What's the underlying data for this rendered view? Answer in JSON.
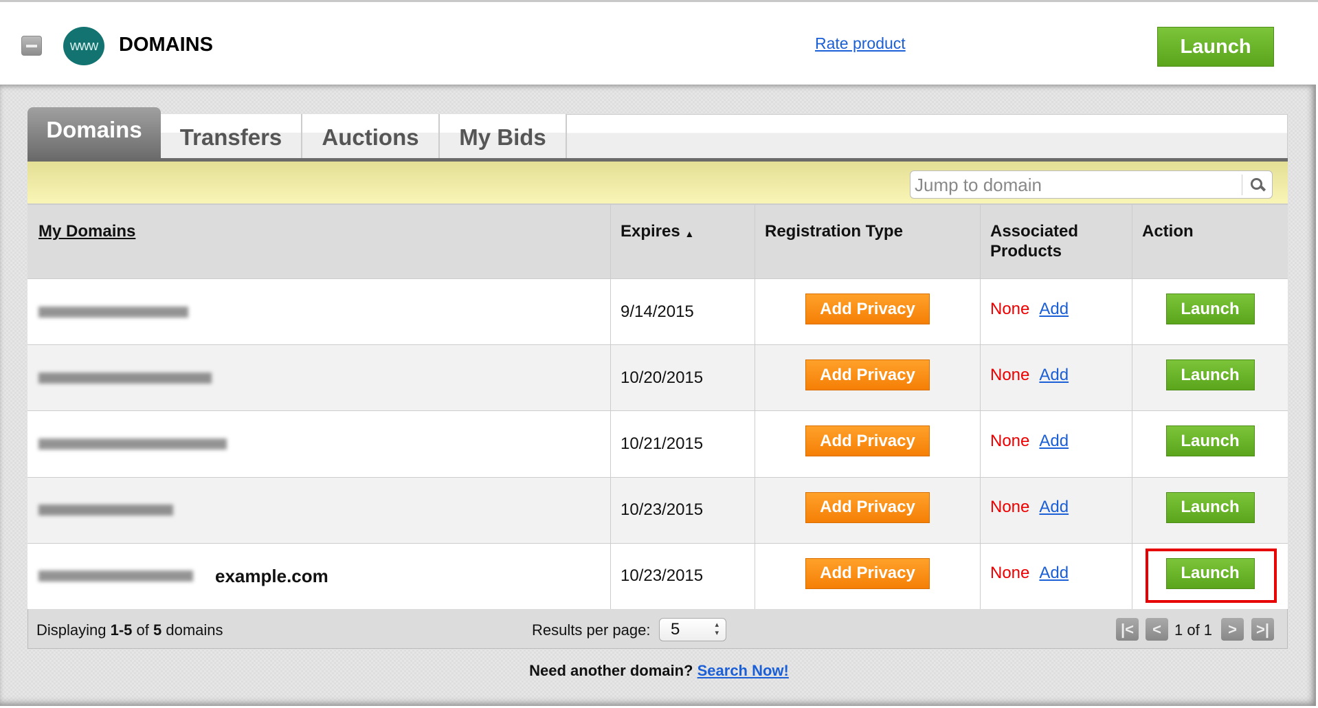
{
  "header": {
    "title": "DOMAINS",
    "logo_text": "www",
    "rate_link": "Rate product",
    "launch_label": "Launch"
  },
  "tabs": [
    {
      "label": "Domains",
      "active": true
    },
    {
      "label": "Transfers",
      "active": false
    },
    {
      "label": "Auctions",
      "active": false
    },
    {
      "label": "My Bids",
      "active": false
    }
  ],
  "search": {
    "placeholder": "Jump to domain"
  },
  "table": {
    "columns": [
      "My Domains",
      "Expires",
      "Registration Type",
      "Associated Products",
      "Action"
    ],
    "sort_indicator": "▲",
    "rows": [
      {
        "expires": "9/14/2015",
        "privacy": "Add Privacy",
        "products": "None",
        "add": "Add",
        "action": "Launch",
        "note": ""
      },
      {
        "expires": "10/20/2015",
        "privacy": "Add Privacy",
        "products": "None",
        "add": "Add",
        "action": "Launch",
        "note": ""
      },
      {
        "expires": "10/21/2015",
        "privacy": "Add Privacy",
        "products": "None",
        "add": "Add",
        "action": "Launch",
        "note": ""
      },
      {
        "expires": "10/23/2015",
        "privacy": "Add Privacy",
        "products": "None",
        "add": "Add",
        "action": "Launch",
        "note": ""
      },
      {
        "expires": "10/23/2015",
        "privacy": "Add Privacy",
        "products": "None",
        "add": "Add",
        "action": "Launch",
        "note": "example.com"
      }
    ]
  },
  "footer": {
    "display_prefix": "Displaying ",
    "display_range": "1-5",
    "display_of": " of ",
    "display_total": "5",
    "display_suffix": " domains",
    "results_label": "Results per page:",
    "results_value": "5",
    "page_info": "1 of 1"
  },
  "bottom": {
    "prompt": "Need another domain?",
    "link": "Search Now!"
  },
  "colors": {
    "launch_green": "#6ab82a",
    "privacy_orange": "#f98c14",
    "none_red": "#e00000",
    "highlight_red": "#e60000",
    "logo_teal": "#137371"
  }
}
